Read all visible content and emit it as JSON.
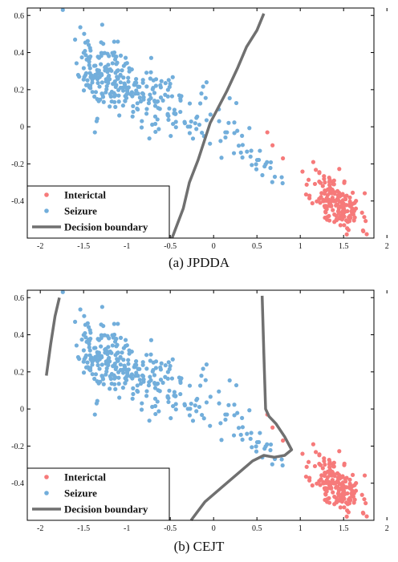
{
  "colors": {
    "interictal": "#f67a7a",
    "seizure": "#72aedb",
    "boundary": "#707070",
    "axis": "#000000"
  },
  "chart_data": [
    {
      "type": "scatter",
      "caption": "(a) JPDDA",
      "xlim": [
        -2.15,
        1.85
      ],
      "ylim": [
        -0.6,
        0.64
      ],
      "xticks": [
        -2,
        -1.5,
        -1,
        -0.5,
        0,
        0.5,
        1,
        1.5,
        2
      ],
      "xtick_labels": [
        "-2",
        "-1.5",
        "-1",
        "-0.5",
        "0",
        "0.5",
        "1",
        "1.5",
        "2"
      ],
      "yticks": [
        -0.4,
        -0.2,
        0,
        0.2,
        0.4,
        0.6
      ],
      "ytick_labels": [
        "-0.4",
        "-0.2",
        "0",
        "0.2",
        "0.4",
        "0.6"
      ],
      "legend": {
        "placement": "bottom-left",
        "entries": [
          "Interictal",
          "Seizure",
          "Decision boundary"
        ]
      },
      "boundary": [
        [
          -0.48,
          -0.6
        ],
        [
          -0.35,
          -0.44
        ],
        [
          -0.28,
          -0.3
        ],
        [
          -0.18,
          -0.18
        ],
        [
          -0.04,
          0.02
        ],
        [
          0.15,
          0.19
        ],
        [
          0.28,
          0.32
        ],
        [
          0.38,
          0.43
        ],
        [
          0.5,
          0.52
        ],
        [
          0.58,
          0.61
        ]
      ]
    },
    {
      "type": "scatter",
      "caption": "(b) CEJT",
      "xlim": [
        -2.15,
        1.85
      ],
      "ylim": [
        -0.6,
        0.64
      ],
      "xticks": [
        -2,
        -1.5,
        -1,
        -0.5,
        0,
        0.5,
        1,
        1.5,
        2
      ],
      "xtick_labels": [
        "-2",
        "-1.5",
        "-1",
        "-0.5",
        "0",
        "0.5",
        "1",
        "1.5",
        "2"
      ],
      "yticks": [
        -0.4,
        -0.2,
        0,
        0.2,
        0.4,
        0.6
      ],
      "ytick_labels": [
        "-0.4",
        "-0.2",
        "0",
        "0.2",
        "0.4",
        "0.6"
      ],
      "legend": {
        "placement": "bottom-left",
        "entries": [
          "Interictal",
          "Seizure",
          "Decision boundary"
        ]
      },
      "boundary": [
        [
          -1.93,
          0.18
        ],
        [
          -1.88,
          0.35
        ],
        [
          -1.83,
          0.5
        ],
        [
          -1.78,
          0.6
        ]
      ],
      "boundary2": [
        [
          0.56,
          0.61
        ],
        [
          0.57,
          0.45
        ],
        [
          0.58,
          0.3
        ],
        [
          0.59,
          0.15
        ],
        [
          0.6,
          0.0
        ],
        [
          0.64,
          -0.04
        ],
        [
          0.72,
          -0.08
        ],
        [
          0.82,
          -0.15
        ],
        [
          0.9,
          -0.22
        ],
        [
          0.82,
          -0.25
        ],
        [
          0.7,
          -0.26
        ],
        [
          0.58,
          -0.25
        ],
        [
          0.45,
          -0.28
        ],
        [
          0.3,
          -0.34
        ],
        [
          0.1,
          -0.42
        ],
        [
          -0.1,
          -0.5
        ],
        [
          -0.26,
          -0.6
        ]
      ]
    }
  ],
  "scatter_params": {
    "interictal": {
      "count": 170,
      "seed": 11,
      "center": [
        1.42,
        -0.41
      ],
      "spread": [
        0.14,
        0.07
      ],
      "slope": -0.27
    },
    "seizure": {
      "count": 330,
      "seed": 7,
      "xrange": [
        -1.6,
        0.8
      ],
      "slope": -0.2,
      "intercept": 0.03,
      "noise": 0.085
    }
  }
}
